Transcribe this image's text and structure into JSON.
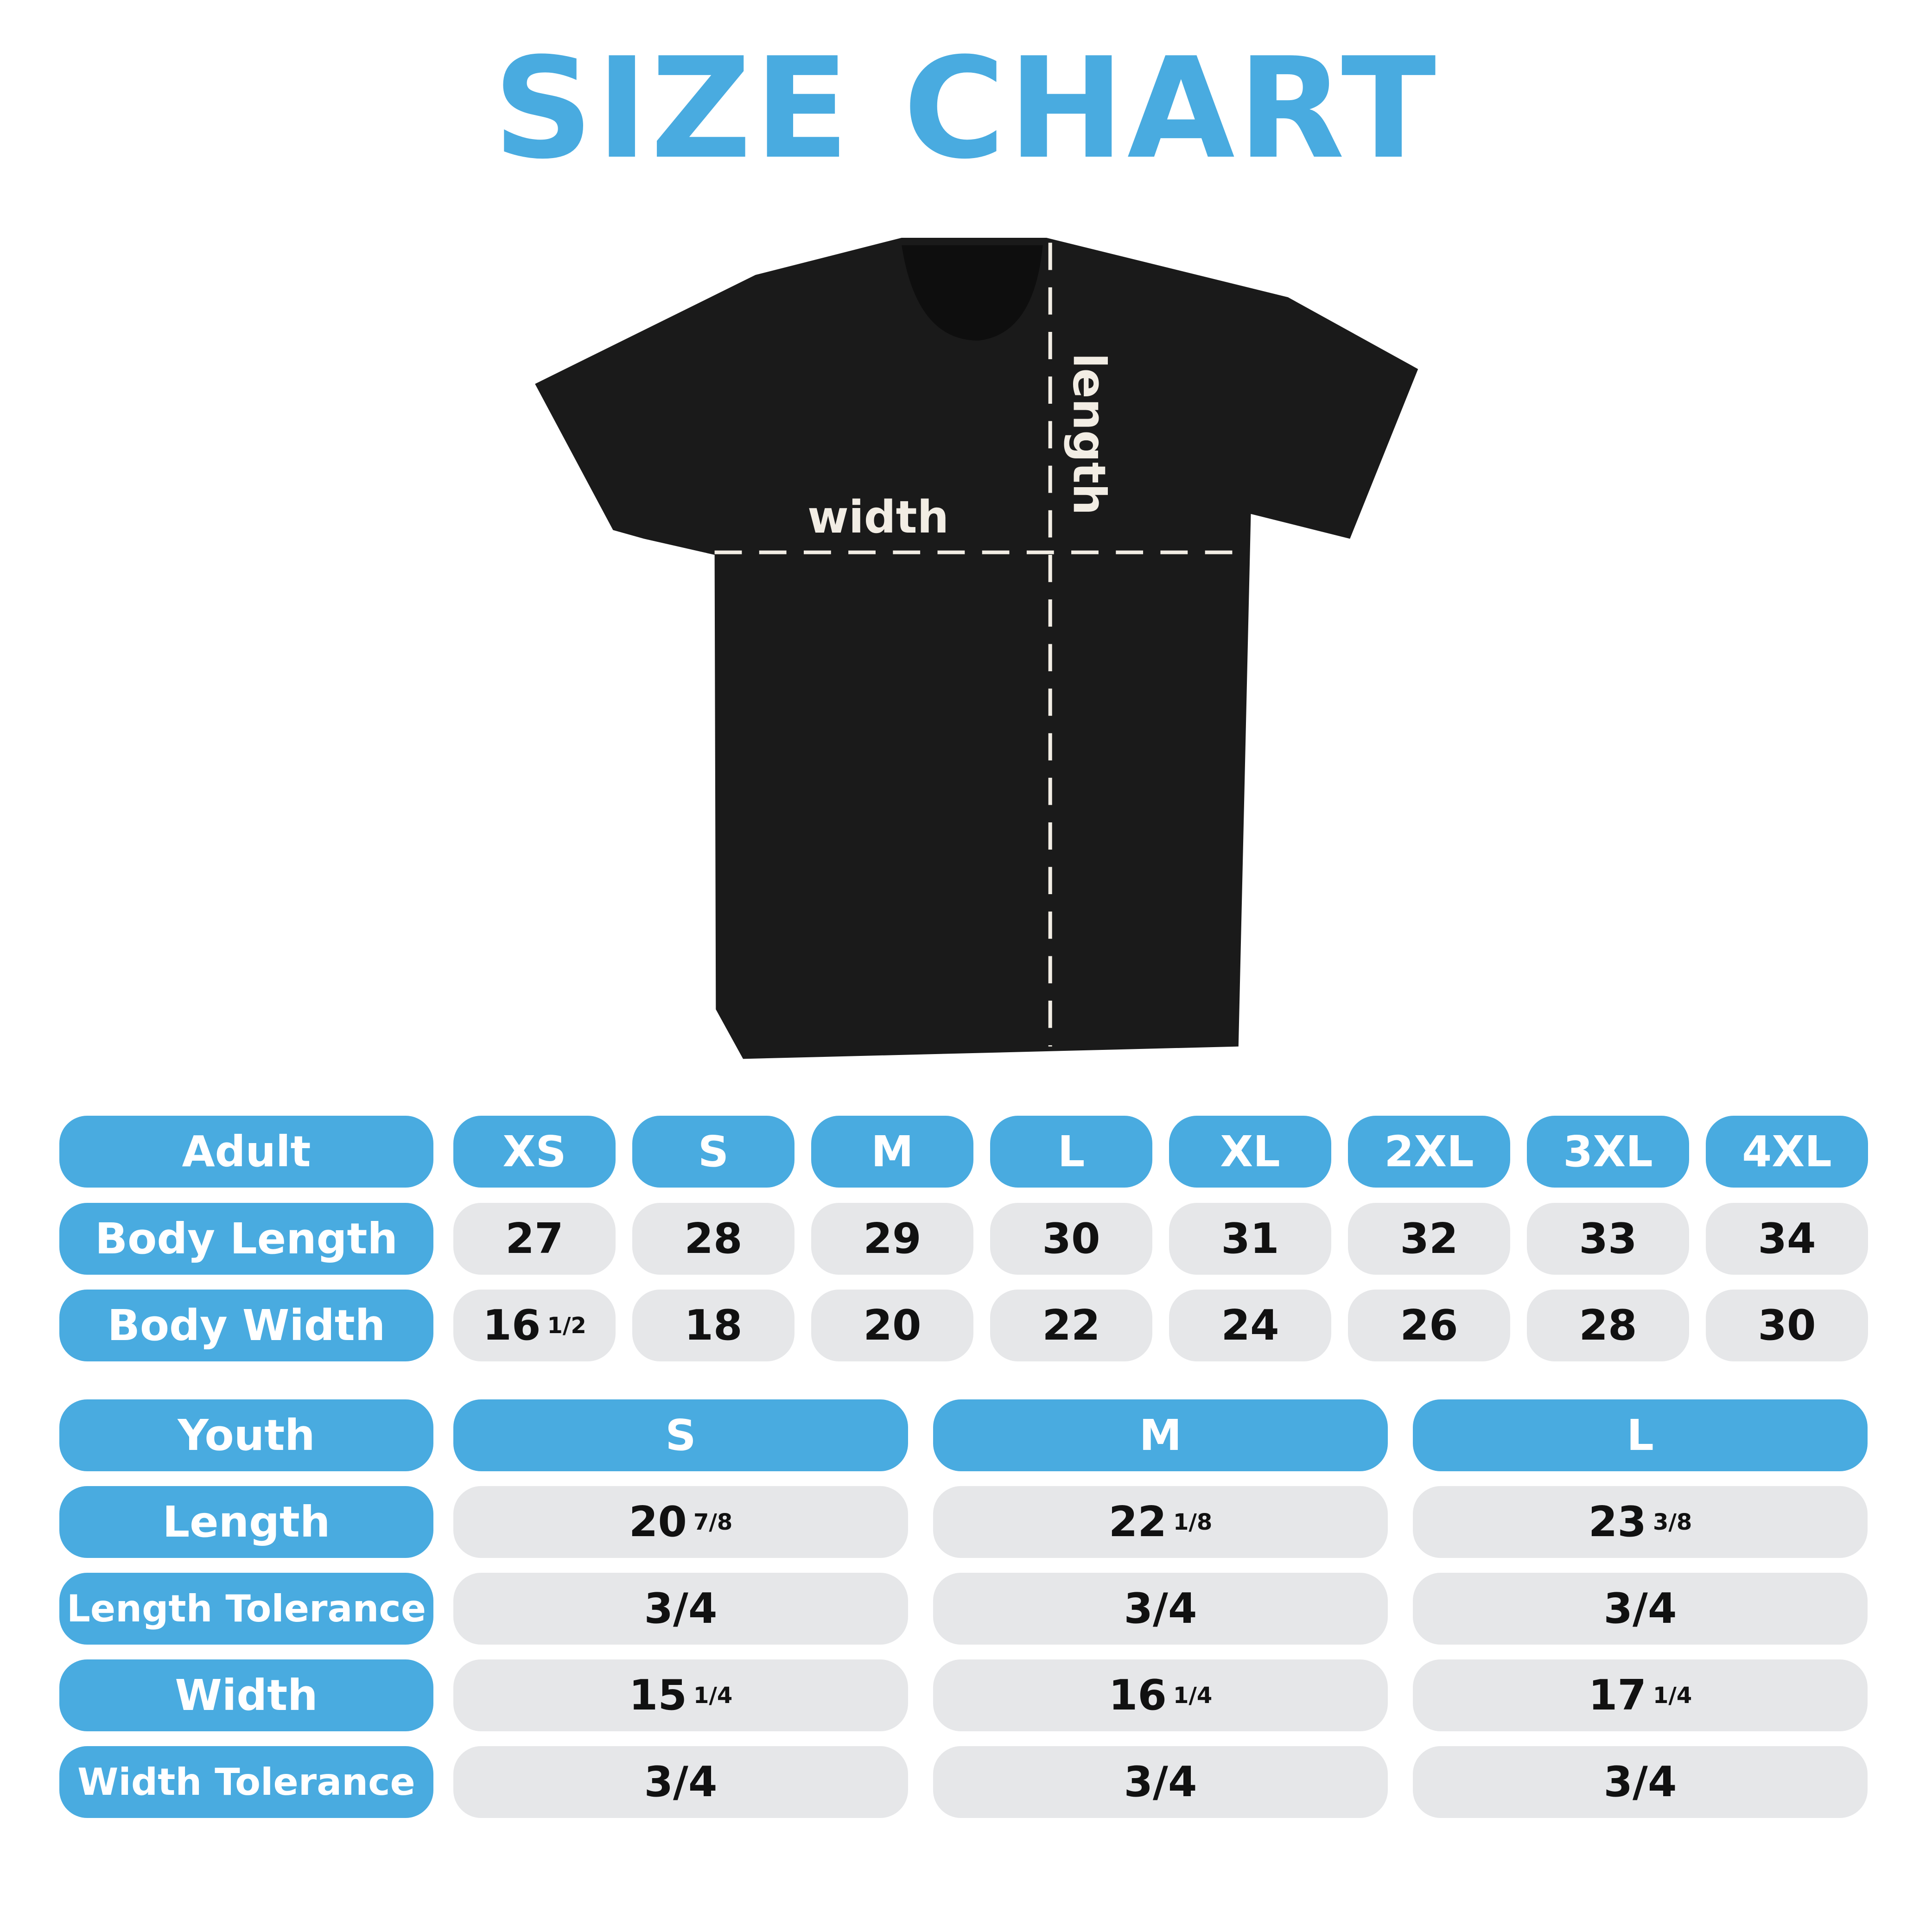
{
  "title": "SIZE CHART",
  "colors": {
    "accent": "#49ABE0",
    "cell": "#E6E7E9",
    "shirt": "#1A1A1A"
  },
  "diagram": {
    "width_label": "width",
    "length_label": "length"
  },
  "adult": {
    "header": "Adult",
    "sizes": [
      "XS",
      "S",
      "M",
      "L",
      "XL",
      "2XL",
      "3XL",
      "4XL"
    ],
    "rows": [
      {
        "label": "Body Length",
        "values": [
          {
            "whole": "27"
          },
          {
            "whole": "28"
          },
          {
            "whole": "29"
          },
          {
            "whole": "30"
          },
          {
            "whole": "31"
          },
          {
            "whole": "32"
          },
          {
            "whole": "33"
          },
          {
            "whole": "34"
          }
        ]
      },
      {
        "label": "Body Width",
        "values": [
          {
            "whole": "16",
            "frac": "1/2"
          },
          {
            "whole": "18"
          },
          {
            "whole": "20"
          },
          {
            "whole": "22"
          },
          {
            "whole": "24"
          },
          {
            "whole": "26"
          },
          {
            "whole": "28"
          },
          {
            "whole": "30"
          }
        ]
      }
    ]
  },
  "youth": {
    "header": "Youth",
    "sizes": [
      "S",
      "M",
      "L"
    ],
    "rows": [
      {
        "label": "Length",
        "values": [
          {
            "whole": "20",
            "frac": "7/8"
          },
          {
            "whole": "22",
            "frac": "1/8"
          },
          {
            "whole": "23",
            "frac": "3/8"
          }
        ]
      },
      {
        "label": "Length Tolerance",
        "values": [
          {
            "whole": "3/4"
          },
          {
            "whole": "3/4"
          },
          {
            "whole": "3/4"
          }
        ]
      },
      {
        "label": "Width",
        "values": [
          {
            "whole": "15",
            "frac": "1/4"
          },
          {
            "whole": "16",
            "frac": "1/4"
          },
          {
            "whole": "17",
            "frac": "1/4"
          }
        ]
      },
      {
        "label": "Width Tolerance",
        "values": [
          {
            "whole": "3/4"
          },
          {
            "whole": "3/4"
          },
          {
            "whole": "3/4"
          }
        ]
      }
    ]
  }
}
